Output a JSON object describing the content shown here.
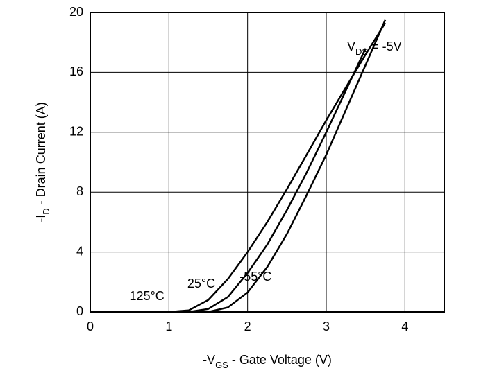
{
  "chart_data": {
    "type": "line",
    "x_label": {
      "text": "-V",
      "sub": "GS",
      "rest": " - Gate Voltage (V)"
    },
    "y_label": {
      "text": "-I",
      "sub": "D",
      "rest": " - Drain Current (A)"
    },
    "annotation": {
      "text": "V",
      "sub": "DS",
      "rest": " = -5V"
    },
    "x": [
      1,
      1.25,
      1.5,
      1.75,
      2,
      2.25,
      2.5,
      2.75,
      3,
      3.25,
      3.5,
      3.75,
      4
    ],
    "series": [
      {
        "name": "125°C",
        "color": "#000000",
        "values": [
          0,
          0.1,
          0.8,
          2.2,
          4,
          6,
          8.2,
          10.5,
          12.8,
          15,
          17.2,
          19.3,
          null
        ]
      },
      {
        "name": "25°C",
        "color": "#000000",
        "values": [
          0,
          0,
          0.2,
          1,
          2.6,
          4.5,
          6.8,
          9.3,
          12,
          14.8,
          17.6,
          null,
          null
        ]
      },
      {
        "name": "-55°C",
        "color": "#000000",
        "values": [
          0,
          0,
          0,
          0.3,
          1.3,
          3,
          5.2,
          7.8,
          10.5,
          13.5,
          16.5,
          19.5,
          null
        ]
      }
    ],
    "xlim": [
      0,
      4.5
    ],
    "xticks": [
      0,
      1,
      2,
      3,
      4
    ],
    "ylim": [
      0,
      20
    ],
    "yticks": [
      0,
      4,
      8,
      12,
      16,
      20
    ],
    "grid": true
  }
}
